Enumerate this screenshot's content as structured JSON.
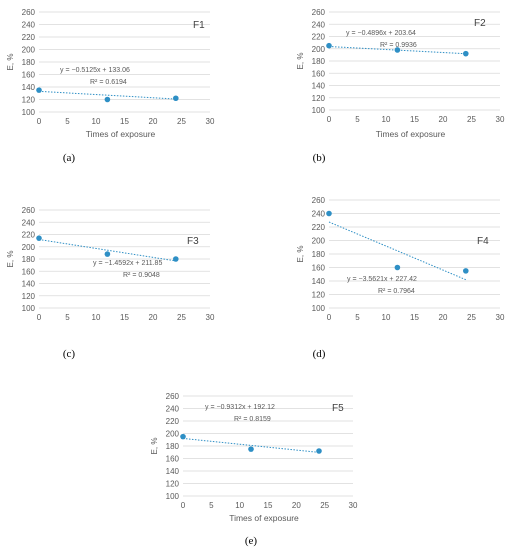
{
  "colors": {
    "point": "#2e8fc5",
    "trend": "#2e8fc5",
    "grid": "#d9d9d9",
    "axis_text": "#595959"
  },
  "captions": [
    "(a)",
    "(b)",
    "(c)",
    "(d)",
    "(e)"
  ],
  "chart_data": [
    {
      "type": "scatter",
      "panel_label": "F1",
      "ylabel": "E, %",
      "xlabel": "Times of exposure",
      "xlim": [
        0,
        30
      ],
      "ylim": [
        100,
        260
      ],
      "xstep": 5,
      "ystep": 20,
      "grid": "horizontal",
      "legend": "none",
      "points": [
        {
          "x": 0,
          "y": 135
        },
        {
          "x": 12,
          "y": 120
        },
        {
          "x": 24,
          "y": 122
        }
      ],
      "trendline": {
        "slope": -0.5125,
        "intercept": 133.06
      },
      "equation": "y = −0.5125x + 133.06",
      "r_squared": "R² = 0.6194"
    },
    {
      "type": "scatter",
      "panel_label": "F2",
      "ylabel": "E, %",
      "xlabel": "Times of exposure",
      "xlim": [
        0,
        30
      ],
      "ylim": [
        100,
        260
      ],
      "xstep": 5,
      "ystep": 20,
      "grid": "horizontal",
      "legend": "none",
      "points": [
        {
          "x": 0,
          "y": 205
        },
        {
          "x": 12,
          "y": 198
        },
        {
          "x": 24,
          "y": 192
        }
      ],
      "trendline": {
        "slope": -0.4896,
        "intercept": 203.64
      },
      "equation": "y = −0.4896x + 203.64",
      "r_squared": "R² = 0.9936"
    },
    {
      "type": "scatter",
      "panel_label": "F3",
      "ylabel": "E, %",
      "xlabel": "",
      "xlim": [
        0,
        30
      ],
      "ylim": [
        100,
        260
      ],
      "xstep": 5,
      "ystep": 20,
      "grid": "horizontal",
      "legend": "none",
      "points": [
        {
          "x": 0,
          "y": 214
        },
        {
          "x": 12,
          "y": 188
        },
        {
          "x": 24,
          "y": 180
        }
      ],
      "trendline": {
        "slope": -1.4592,
        "intercept": 211.85
      },
      "equation": "y = −1.4592x + 211.85",
      "r_squared": "R² = 0.9048"
    },
    {
      "type": "scatter",
      "panel_label": "F4",
      "ylabel": "E, %",
      "xlabel": "",
      "xlim": [
        0,
        30
      ],
      "ylim": [
        100,
        260
      ],
      "xstep": 5,
      "ystep": 20,
      "grid": "horizontal",
      "legend": "none",
      "points": [
        {
          "x": 0,
          "y": 240
        },
        {
          "x": 12,
          "y": 160
        },
        {
          "x": 24,
          "y": 155
        }
      ],
      "trendline": {
        "slope": -3.5621,
        "intercept": 227.42
      },
      "equation": "y = −3.5621x + 227.42",
      "r_squared": "R² = 0.7964"
    },
    {
      "type": "scatter",
      "panel_label": "F5",
      "ylabel": "E, %",
      "xlabel": "Times of exposure",
      "xlim": [
        0,
        30
      ],
      "ylim": [
        100,
        260
      ],
      "xstep": 5,
      "ystep": 20,
      "grid": "horizontal",
      "legend": "none",
      "points": [
        {
          "x": 0,
          "y": 195
        },
        {
          "x": 12,
          "y": 175
        },
        {
          "x": 24,
          "y": 172
        }
      ],
      "trendline": {
        "slope": -0.9312,
        "intercept": 192.12
      },
      "equation": "y = −0.9312x + 192.12",
      "r_squared": "R² = 0.8159"
    }
  ]
}
